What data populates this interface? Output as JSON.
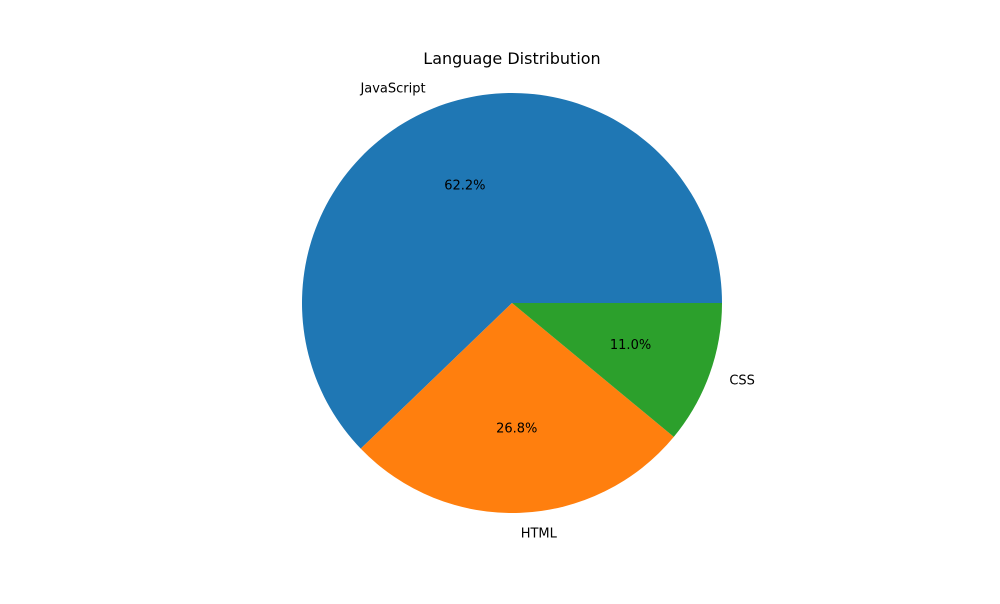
{
  "chart_data": {
    "type": "pie",
    "title": "Language Distribution",
    "categories": [
      "JavaScript",
      "HTML",
      "CSS"
    ],
    "values": [
      62.2,
      26.8,
      11.0
    ],
    "percent_labels": [
      "62.2%",
      "26.8%",
      "11.0%"
    ],
    "colors": [
      "#1f77b4",
      "#ff7f0e",
      "#2ca02c"
    ],
    "start_angle_deg": 0,
    "direction": "counterclockwise",
    "legend": "none"
  }
}
